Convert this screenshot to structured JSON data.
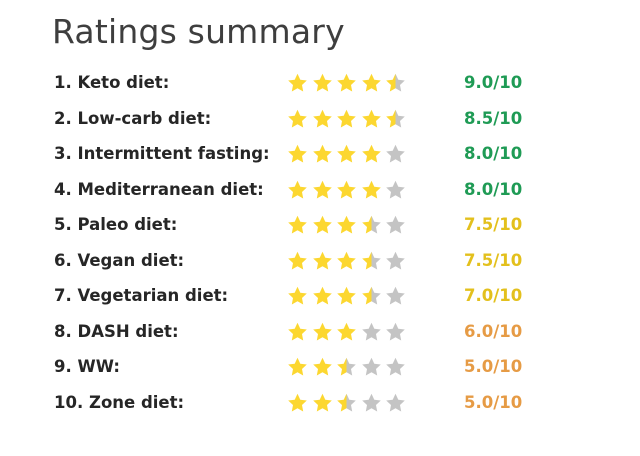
{
  "title": "Ratings summary",
  "colors": {
    "star_filled": "#fcd730",
    "star_empty": "#c4c4c4",
    "score_green": "#1f9b55",
    "score_yellow": "#e3c01d",
    "score_orange": "#e69b45"
  },
  "ratings": [
    {
      "label": "1. Keto diet:",
      "stars": 4.5,
      "score": "9.0/10",
      "score_color": "#1f9b55"
    },
    {
      "label": "2. Low-carb diet:",
      "stars": 4.5,
      "score": "8.5/10",
      "score_color": "#1f9b55"
    },
    {
      "label": "3. Intermittent fasting:",
      "stars": 4,
      "score": "8.0/10",
      "score_color": "#1f9b55"
    },
    {
      "label": "4. Mediterranean diet:",
      "stars": 4,
      "score": "8.0/10",
      "score_color": "#1f9b55"
    },
    {
      "label": "5. Paleo diet:",
      "stars": 3.5,
      "score": "7.5/10",
      "score_color": "#e3c01d"
    },
    {
      "label": "6. Vegan diet:",
      "stars": 3.5,
      "score": "7.5/10",
      "score_color": "#e3c01d"
    },
    {
      "label": "7. Vegetarian diet:",
      "stars": 3.5,
      "score": "7.0/10",
      "score_color": "#e3c01d"
    },
    {
      "label": "8. DASH diet:",
      "stars": 3,
      "score": "6.0/10",
      "score_color": "#e69b45"
    },
    {
      "label": "9. WW:",
      "stars": 2.5,
      "score": "5.0/10",
      "score_color": "#e69b45"
    },
    {
      "label": "10. Zone diet:",
      "stars": 2.5,
      "score": "5.0/10",
      "score_color": "#e69b45"
    }
  ],
  "max_stars": 5,
  "icon": "star-icon"
}
